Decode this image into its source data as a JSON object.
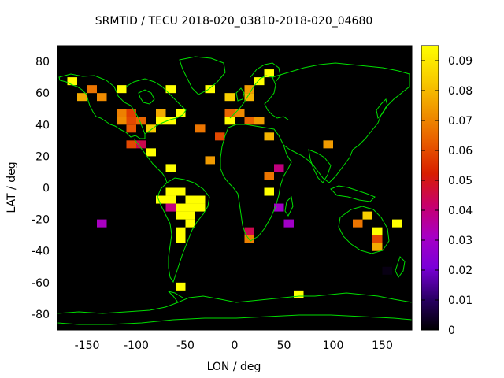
{
  "chart_data": {
    "type": "heatmap",
    "title": "SRMTID / TECU 2018-020_03810-2018-020_04680",
    "xlabel": "LON / deg",
    "ylabel": "LAT / deg",
    "xlim": [
      -180,
      180
    ],
    "ylim": [
      -90,
      90
    ],
    "xticks": [
      -150,
      -100,
      -50,
      0,
      50,
      100,
      150
    ],
    "yticks": [
      -80,
      -60,
      -40,
      -20,
      0,
      20,
      40,
      60,
      80
    ],
    "colorbar": {
      "range": [
        0,
        0.095
      ],
      "ticks": [
        0,
        0.01,
        0.02,
        0.03,
        0.04,
        0.05,
        0.06,
        0.07,
        0.08,
        0.09
      ],
      "palette": [
        "#000000",
        "#2a0066",
        "#7a00d8",
        "#a800c4",
        "#c8006a",
        "#d81e00",
        "#e85c00",
        "#f09500",
        "#f8cc00",
        "#ffff00"
      ]
    },
    "background": "#000000",
    "coastline_color": "#00dd00",
    "grid": false,
    "cell_size_deg": [
      10,
      5
    ],
    "cells": [
      {
        "lon": -165,
        "lat": 67.5,
        "value": 0.095
      },
      {
        "lon": -145,
        "lat": 62.5,
        "value": 0.068
      },
      {
        "lon": -155,
        "lat": 57.5,
        "value": 0.078
      },
      {
        "lon": -135,
        "lat": 57.5,
        "value": 0.072
      },
      {
        "lon": -115,
        "lat": 62.5,
        "value": 0.095
      },
      {
        "lon": -65,
        "lat": 62.5,
        "value": 0.095
      },
      {
        "lon": -25,
        "lat": 62.5,
        "value": 0.095
      },
      {
        "lon": -5,
        "lat": 57.5,
        "value": 0.085
      },
      {
        "lon": 15,
        "lat": 62.5,
        "value": 0.075
      },
      {
        "lon": 15,
        "lat": 57.5,
        "value": 0.08
      },
      {
        "lon": 25,
        "lat": 67.5,
        "value": 0.095
      },
      {
        "lon": 35,
        "lat": 72.5,
        "value": 0.095
      },
      {
        "lon": -115,
        "lat": 47.5,
        "value": 0.07
      },
      {
        "lon": -115,
        "lat": 42.5,
        "value": 0.072
      },
      {
        "lon": -105,
        "lat": 47.5,
        "value": 0.058
      },
      {
        "lon": -105,
        "lat": 42.5,
        "value": 0.06
      },
      {
        "lon": -95,
        "lat": 42.5,
        "value": 0.065
      },
      {
        "lon": -105,
        "lat": 37.5,
        "value": 0.062
      },
      {
        "lon": -85,
        "lat": 37.5,
        "value": 0.085
      },
      {
        "lon": -75,
        "lat": 47.5,
        "value": 0.078
      },
      {
        "lon": -75,
        "lat": 42.5,
        "value": 0.095
      },
      {
        "lon": -65,
        "lat": 42.5,
        "value": 0.095
      },
      {
        "lon": -55,
        "lat": 47.5,
        "value": 0.095
      },
      {
        "lon": -105,
        "lat": 27.5,
        "value": 0.06
      },
      {
        "lon": -95,
        "lat": 27.5,
        "value": 0.045
      },
      {
        "lon": -85,
        "lat": 22.5,
        "value": 0.095
      },
      {
        "lon": -35,
        "lat": 37.5,
        "value": 0.068
      },
      {
        "lon": -15,
        "lat": 32.5,
        "value": 0.06
      },
      {
        "lon": -5,
        "lat": 47.5,
        "value": 0.065
      },
      {
        "lon": -5,
        "lat": 42.5,
        "value": 0.095
      },
      {
        "lon": 5,
        "lat": 47.5,
        "value": 0.072
      },
      {
        "lon": 15,
        "lat": 42.5,
        "value": 0.065
      },
      {
        "lon": 25,
        "lat": 42.5,
        "value": 0.075
      },
      {
        "lon": 35,
        "lat": 32.5,
        "value": 0.08
      },
      {
        "lon": 95,
        "lat": 27.5,
        "value": 0.075
      },
      {
        "lon": -25,
        "lat": 17.5,
        "value": 0.075
      },
      {
        "lon": -65,
        "lat": 12.5,
        "value": 0.095
      },
      {
        "lon": 35,
        "lat": 7.5,
        "value": 0.068
      },
      {
        "lon": 45,
        "lat": 12.5,
        "value": 0.04
      },
      {
        "lon": 35,
        "lat": -2.5,
        "value": 0.095
      },
      {
        "lon": -75,
        "lat": -7.5,
        "value": 0.095
      },
      {
        "lon": -65,
        "lat": -2.5,
        "value": 0.095
      },
      {
        "lon": -65,
        "lat": -7.5,
        "value": 0.095
      },
      {
        "lon": -55,
        "lat": -2.5,
        "value": 0.095
      },
      {
        "lon": -45,
        "lat": -7.5,
        "value": 0.095
      },
      {
        "lon": -35,
        "lat": -7.5,
        "value": 0.095
      },
      {
        "lon": -65,
        "lat": -12.5,
        "value": 0.04
      },
      {
        "lon": -55,
        "lat": -12.5,
        "value": 0.095
      },
      {
        "lon": -45,
        "lat": -12.5,
        "value": 0.095
      },
      {
        "lon": -35,
        "lat": -12.5,
        "value": 0.095
      },
      {
        "lon": -55,
        "lat": -17.5,
        "value": 0.095
      },
      {
        "lon": -45,
        "lat": -17.5,
        "value": 0.095
      },
      {
        "lon": -45,
        "lat": -22.5,
        "value": 0.095
      },
      {
        "lon": -55,
        "lat": -27.5,
        "value": 0.095
      },
      {
        "lon": -55,
        "lat": -32.5,
        "value": 0.095
      },
      {
        "lon": -135,
        "lat": -22.5,
        "value": 0.032
      },
      {
        "lon": 45,
        "lat": -12.5,
        "value": 0.03
      },
      {
        "lon": 55,
        "lat": -22.5,
        "value": 0.03
      },
      {
        "lon": 15,
        "lat": -27.5,
        "value": 0.045
      },
      {
        "lon": 15,
        "lat": -32.5,
        "value": 0.07
      },
      {
        "lon": 135,
        "lat": -17.5,
        "value": 0.085
      },
      {
        "lon": 125,
        "lat": -22.5,
        "value": 0.068
      },
      {
        "lon": 145,
        "lat": -27.5,
        "value": 0.095
      },
      {
        "lon": 145,
        "lat": -32.5,
        "value": 0.06
      },
      {
        "lon": 145,
        "lat": -37.5,
        "value": 0.078
      },
      {
        "lon": 165,
        "lat": -22.5,
        "value": 0.095
      },
      {
        "lon": 155,
        "lat": -52.5,
        "value": 0.002
      },
      {
        "lon": -55,
        "lat": -62.5,
        "value": 0.095
      },
      {
        "lon": 65,
        "lat": -67.5,
        "value": 0.095
      }
    ]
  }
}
